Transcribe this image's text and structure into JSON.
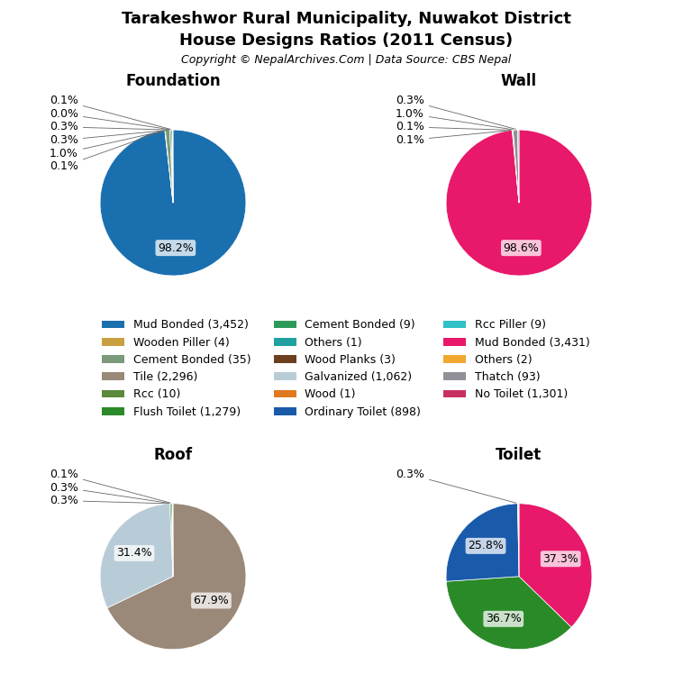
{
  "title": "Tarakeshwor Rural Municipality, Nuwakot District",
  "subtitle": "House Designs Ratios (2011 Census)",
  "annotations": [
    "Copyright © NepalArchives.Com | Data Source: CBS Nepal"
  ],
  "legend": "center",
  "series": [
    {
      "name": "Mud Bonded (3,452)",
      "color": "#1a6faf"
    },
    {
      "name": "Wooden Piller (4)",
      "color": "#c8a040"
    },
    {
      "name": "Cement Bonded (35)",
      "color": "#7a9a7a"
    },
    {
      "name": "Tile (2,296)",
      "color": "#9a8878"
    },
    {
      "name": "Rcc (10)",
      "color": "#5a8a3a"
    },
    {
      "name": "Flush Toilet (1,279)",
      "color": "#2a8a28"
    },
    {
      "name": "Cement Bonded (9)",
      "color": "#2e9a5a"
    },
    {
      "name": "Others (1)",
      "color": "#20a0a0"
    },
    {
      "name": "Wood Planks (3)",
      "color": "#6a4020"
    },
    {
      "name": "Galvanized (1,062)",
      "color": "#b8ccd8"
    },
    {
      "name": "Wood (1)",
      "color": "#e07820"
    },
    {
      "name": "Ordinary Toilet (898)",
      "color": "#1a5aaa"
    },
    {
      "name": "Rcc Piller (9)",
      "color": "#30c0c8"
    },
    {
      "name": "Mud Bonded (3,431)",
      "color": "#e8186a"
    },
    {
      "name": "Others (2)",
      "color": "#f0a830"
    },
    {
      "name": "Thatch (93)",
      "color": "#909098"
    },
    {
      "name": "No Toilet (1,301)",
      "color": "#c83060"
    }
  ],
  "chart_data": [
    {
      "type": "pie",
      "title": "Foundation",
      "values": [
        98.2,
        0.1,
        1.0,
        0.3,
        0.3,
        0.0,
        0.1
      ],
      "value_labels": [
        "98.2%",
        "0.1%",
        "1.0%",
        "0.3%",
        "0.3%",
        "0.0%",
        "0.1%"
      ],
      "colors": [
        "#1a6faf",
        "#c8a040",
        "#7a9a7a",
        "#5a8a3a",
        "#2e9a5a",
        "#20a0a0",
        "#6a4020"
      ],
      "data_labels": true
    },
    {
      "type": "pie",
      "title": "Wall",
      "values": [
        98.6,
        0.1,
        0.1,
        1.0,
        0.3
      ],
      "value_labels": [
        "98.6%",
        "0.1%",
        "0.1%",
        "1.0%",
        "0.3%"
      ],
      "colors": [
        "#e8186a",
        "#30c0c8",
        "#f0a830",
        "#909098",
        "#a8b8b0"
      ],
      "data_labels": true
    },
    {
      "type": "pie",
      "title": "Roof",
      "values": [
        67.9,
        31.4,
        0.3,
        0.3,
        0.1
      ],
      "value_labels": [
        "67.9%",
        "31.4%",
        "0.3%",
        "0.3%",
        "0.1%"
      ],
      "colors": [
        "#9a8878",
        "#b8ccd8",
        "#2e9a5a",
        "#5a8a3a",
        "#6a4020"
      ],
      "data_labels": true
    },
    {
      "type": "pie",
      "title": "Toilet",
      "values": [
        37.3,
        36.7,
        25.8,
        0.3
      ],
      "value_labels": [
        "37.3%",
        "36.7%",
        "25.8%",
        "0.3%"
      ],
      "colors": [
        "#e8186a",
        "#2a8a28",
        "#1a5aaa",
        "#f0f0f0"
      ],
      "data_labels": true
    }
  ]
}
